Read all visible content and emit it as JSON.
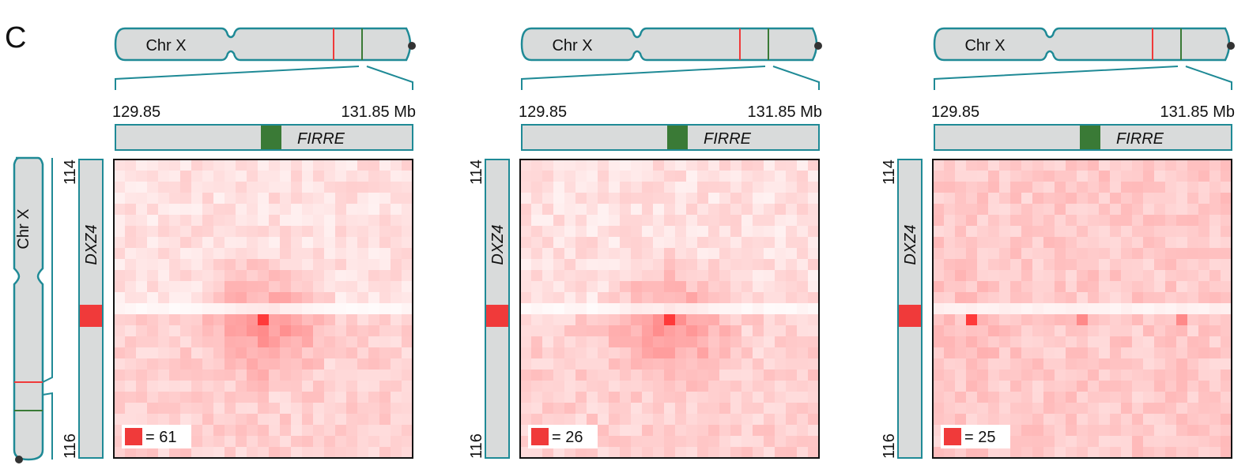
{
  "panel_label": "C",
  "colors": {
    "teal": "#1f8a96",
    "chrom_fill": "#d9dbdb",
    "dxz4_red": "#f03a3a",
    "firre_green": "#3a7a36",
    "heat_high": "#f03a3a",
    "heat_low": "#ffffff"
  },
  "chromosome_label": "Chr X",
  "ruler_start": "129.85",
  "ruler_end": "131.85 Mb",
  "gene_x": "FIRRE",
  "gene_y": "DXZ4",
  "y_start": "114",
  "y_end": "116",
  "panels": [
    {
      "legend_text": "= 61",
      "max_value": 61
    },
    {
      "legend_text": "= 26",
      "max_value": 26
    },
    {
      "legend_text": "= 25",
      "max_value": 25
    }
  ],
  "left_chromosome_label": "Chr X"
}
